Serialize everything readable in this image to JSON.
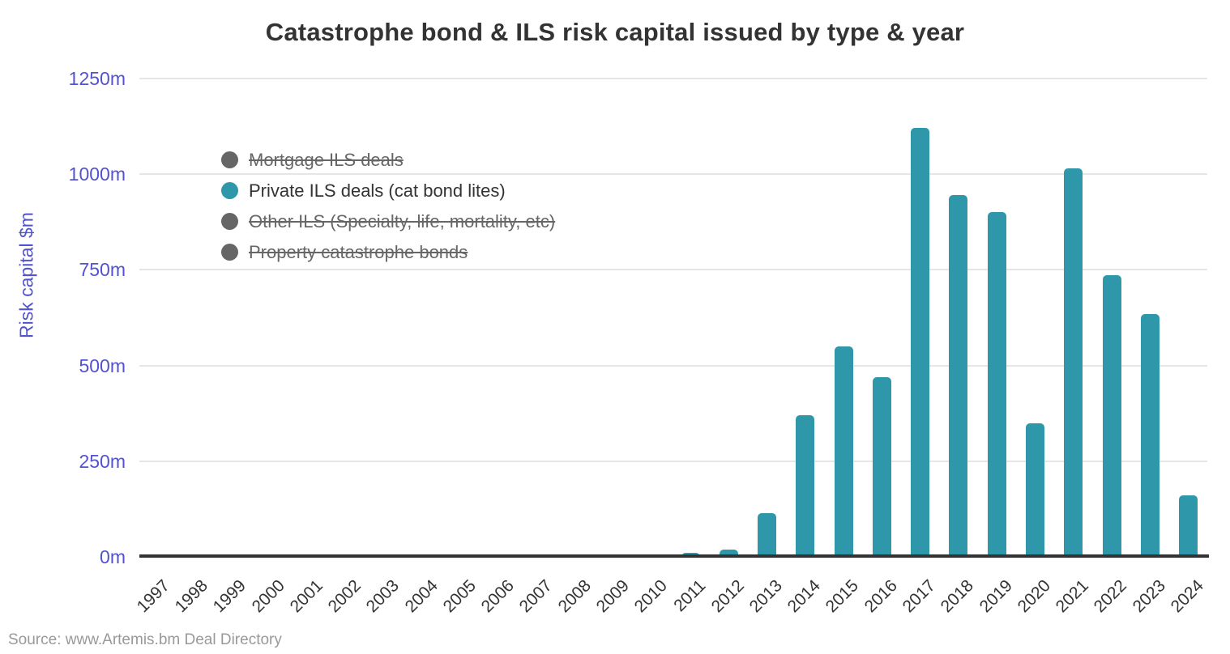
{
  "title": "Catastrophe bond & ILS risk capital issued by type & year",
  "source": "Source: www.Artemis.bm Deal Directory",
  "colors": {
    "bar_teal": "#2E98AA",
    "axis_label_purple": "#5352CF",
    "text_dark": "#333333",
    "disabled_gray": "#666666",
    "grid_gray": "#E6E6E6",
    "axis_line_dark": "#333333",
    "source_gray": "#999999"
  },
  "legend": {
    "items": [
      {
        "label": "Mortgage ILS deals",
        "active": false
      },
      {
        "label": "Private ILS deals (cat bond lites)",
        "active": true
      },
      {
        "label": "Other ILS (Specialty, life, mortality, etc)",
        "active": false
      },
      {
        "label": "Property catastrophe bonds",
        "active": false
      }
    ]
  },
  "chart_data": {
    "type": "bar",
    "title": "Catastrophe bond & ILS risk capital issued by type & year",
    "xlabel": "",
    "ylabel": "Risk capital $m",
    "units": "$m",
    "ylim": [
      0,
      1250
    ],
    "ytick_labels": [
      "0m",
      "250m",
      "500m",
      "750m",
      "1000m",
      "1250m"
    ],
    "grid": true,
    "legend_position": "top-left-inside",
    "categories": [
      "1997",
      "1998",
      "1999",
      "2000",
      "2001",
      "2002",
      "2003",
      "2004",
      "2005",
      "2006",
      "2007",
      "2008",
      "2009",
      "2010",
      "2011",
      "2012",
      "2013",
      "2014",
      "2015",
      "2016",
      "2017",
      "2018",
      "2019",
      "2020",
      "2021",
      "2022",
      "2023",
      "2024"
    ],
    "series": [
      {
        "name": "Private ILS deals (cat bond lites)",
        "visible": true,
        "values": [
          0,
          0,
          0,
          0,
          0,
          0,
          0,
          0,
          0,
          0,
          0,
          0,
          0,
          0,
          10,
          20,
          115,
          370,
          550,
          470,
          1120,
          945,
          900,
          350,
          1015,
          735,
          635,
          160
        ]
      }
    ],
    "hidden_series": [
      "Mortgage ILS deals",
      "Other ILS (Specialty, life, mortality, etc)",
      "Property catastrophe bonds"
    ]
  }
}
